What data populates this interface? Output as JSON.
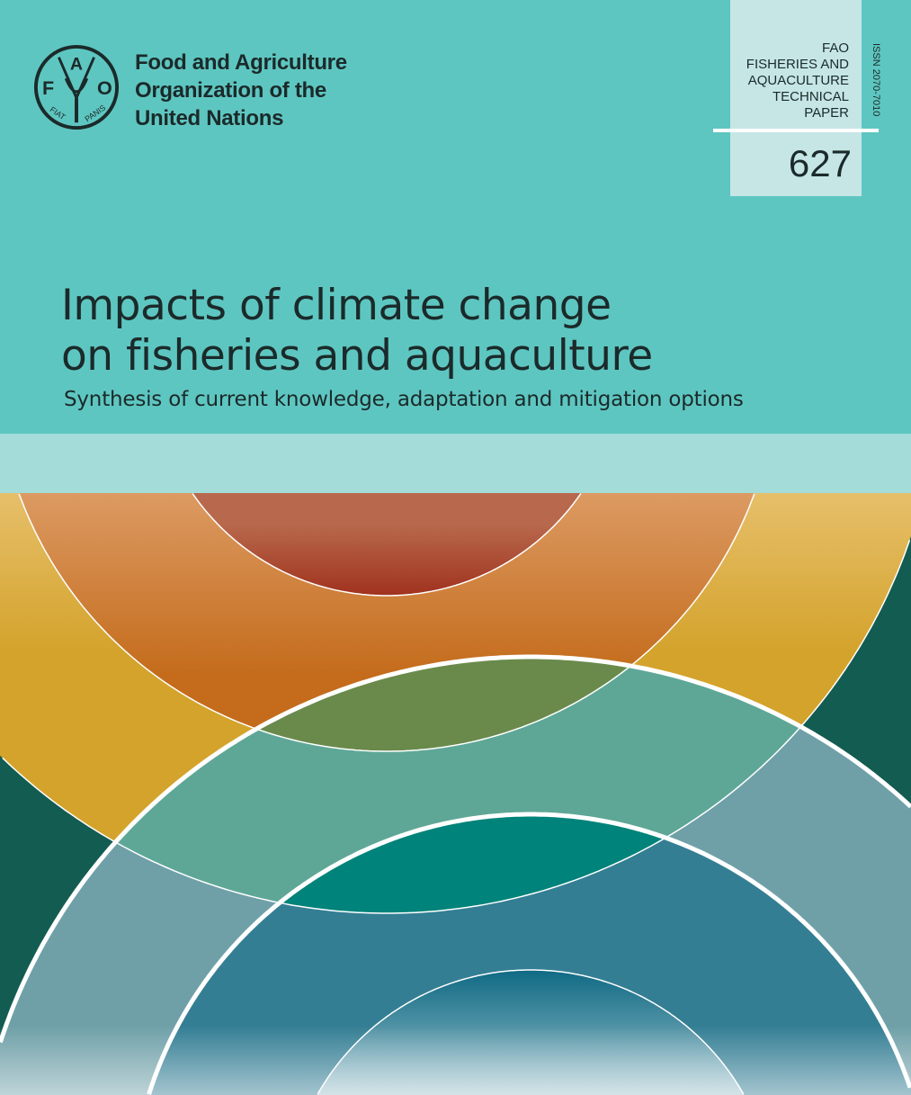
{
  "publisher": {
    "logo_letters": [
      "F",
      "A",
      "O"
    ],
    "logo_motto": "FIAT PANIS",
    "name_lines": [
      "Food and Agriculture",
      "Organization of the",
      "United Nations"
    ]
  },
  "series": {
    "lines": [
      "FAO",
      "FISHERIES AND",
      "AQUACULTURE",
      "TECHNICAL",
      "PAPER"
    ],
    "number": "627",
    "issn": "ISSN 2070-7010"
  },
  "title": {
    "lines": [
      "Impacts of climate change",
      "on fisheries and aquaculture"
    ],
    "subtitle": "Synthesis of current knowledge, adaptation and mitigation options"
  },
  "colors": {
    "header_bg": "#5ec6c1",
    "band": "#a3dcd8",
    "background": "#135c52",
    "yellow": "#d4a32c",
    "orange": "#c8702a",
    "red": "#a63e2a",
    "teal_green": "#5ea796",
    "olive": "#6a8a4c",
    "deep_teal": "#00837a",
    "blue_gray": "#6fa0a8",
    "blue": "#347e94"
  }
}
